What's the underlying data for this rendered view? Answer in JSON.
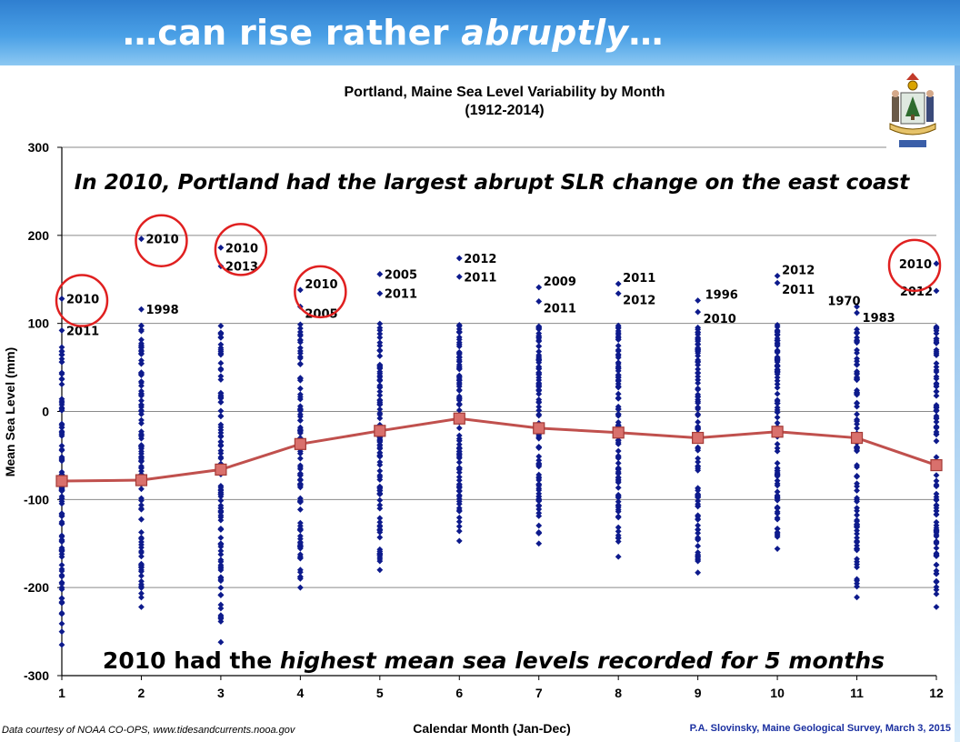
{
  "slide": {
    "title_start": "…can rise rather ",
    "title_italic": "abruptly",
    "title_end": "…"
  },
  "annotations": {
    "top": "In 2010, Portland had the largest abrupt SLR change on the east coast",
    "bottom_start": "2010 had the ",
    "bottom_italic": "highest mean sea levels recorded for 5 months"
  },
  "credits": {
    "left": "Data courtesy of NOAA CO-OPS, www.tidesandcurrents.nooa.gov",
    "right": "P.A. Slovinsky, Maine Geological Survey, March 3, 2015"
  },
  "logo": {
    "icon": "maine-state-seal-icon"
  },
  "colors": {
    "points": "#0d1a8c",
    "mean_line": "#c0504d",
    "circle": "#e02020",
    "header": "#3a8ddc"
  },
  "chart_data": {
    "type": "scatter",
    "title": "Portland, Maine Sea Level Variability by Month",
    "subtitle": "(1912-2014)",
    "xlabel": "Calendar Month (Jan-Dec)",
    "ylabel": "Mean Sea Level (mm)",
    "x_ticks": [
      "1",
      "2",
      "3",
      "4",
      "5",
      "6",
      "7",
      "8",
      "9",
      "10",
      "11",
      "12"
    ],
    "y_ticks": [
      "300",
      "200",
      "100",
      "0",
      "-100",
      "-200",
      "-300"
    ],
    "xlim": [
      1,
      12
    ],
    "ylim": [
      -300,
      300
    ],
    "grid": "horizontal",
    "series": [
      {
        "name": "",
        "kind": "points",
        "by_month": [
          {
            "month": 1,
            "max": 128,
            "min": -265
          },
          {
            "month": 2,
            "max": 196,
            "min": -222
          },
          {
            "month": 3,
            "max": 186,
            "min": -262
          },
          {
            "month": 4,
            "max": 138,
            "min": -200
          },
          {
            "month": 5,
            "max": 156,
            "min": -180
          },
          {
            "month": 6,
            "max": 174,
            "min": -147
          },
          {
            "month": 7,
            "max": 141,
            "min": -150
          },
          {
            "month": 8,
            "max": 145,
            "min": -165
          },
          {
            "month": 9,
            "max": 126,
            "min": -183
          },
          {
            "month": 10,
            "max": 154,
            "min": -156
          },
          {
            "month": 11,
            "max": 119,
            "min": -211
          },
          {
            "month": 12,
            "max": 168,
            "min": -222
          }
        ]
      },
      {
        "name": "",
        "kind": "line",
        "x": [
          1,
          2,
          3,
          4,
          5,
          6,
          7,
          8,
          9,
          10,
          11,
          12
        ],
        "values": [
          -79,
          -78,
          -66,
          -37,
          -22,
          -8,
          -19,
          -24,
          -30,
          -23,
          -30,
          -61
        ]
      }
    ],
    "labeled_points": [
      {
        "month": 1,
        "year": "2010",
        "value": 128
      },
      {
        "month": 1,
        "year": "2011",
        "value": 92
      },
      {
        "month": 2,
        "year": "2010",
        "value": 196
      },
      {
        "month": 2,
        "year": "1998",
        "value": 116
      },
      {
        "month": 3,
        "year": "2010",
        "value": 186
      },
      {
        "month": 3,
        "year": "2013",
        "value": 165
      },
      {
        "month": 4,
        "year": "2010",
        "value": 138
      },
      {
        "month": 4,
        "year": "2005",
        "value": 119
      },
      {
        "month": 5,
        "year": "2005",
        "value": 156
      },
      {
        "month": 5,
        "year": "2011",
        "value": 134
      },
      {
        "month": 6,
        "year": "2012",
        "value": 174
      },
      {
        "month": 6,
        "year": "2011",
        "value": 153
      },
      {
        "month": 7,
        "year": "2009",
        "value": 141
      },
      {
        "month": 7,
        "year": "2011",
        "value": 125
      },
      {
        "month": 8,
        "year": "2011",
        "value": 145
      },
      {
        "month": 8,
        "year": "2012",
        "value": 134
      },
      {
        "month": 9,
        "year": "1996",
        "value": 126
      },
      {
        "month": 9,
        "year": "2010",
        "value": 113
      },
      {
        "month": 10,
        "year": "2012",
        "value": 154
      },
      {
        "month": 10,
        "year": "2011",
        "value": 146
      },
      {
        "month": 11,
        "year": "1970",
        "value": 119
      },
      {
        "month": 11,
        "year": "1983",
        "value": 112
      },
      {
        "month": 12,
        "year": "2010",
        "value": 168
      },
      {
        "month": 12,
        "year": "2012",
        "value": 137
      }
    ],
    "highlighted": [
      {
        "month": 1,
        "year": "2010"
      },
      {
        "month": 2,
        "year": "2010"
      },
      {
        "month": 3,
        "year": "2010"
      },
      {
        "month": 4,
        "year": "2010"
      },
      {
        "month": 12,
        "year": "2010"
      }
    ]
  }
}
